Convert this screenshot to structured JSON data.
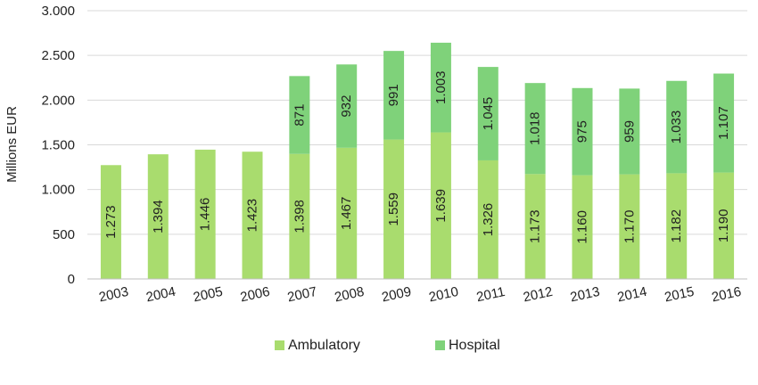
{
  "chart_data": {
    "type": "bar",
    "stacked": true,
    "title": "",
    "xlabel": "",
    "ylabel": "Millions EUR",
    "ylim": [
      0,
      3000
    ],
    "yticks": [
      0,
      500,
      1000,
      1500,
      2000,
      2500,
      3000
    ],
    "ytick_labels": [
      "0",
      "500",
      "1.000",
      "1.500",
      "2.000",
      "2.500",
      "3.000"
    ],
    "grid": true,
    "legend_position": "bottom",
    "categories": [
      "2003",
      "2004",
      "2005",
      "2006",
      "2007",
      "2008",
      "2009",
      "2010",
      "2011",
      "2012",
      "2013",
      "2014",
      "2015",
      "2016"
    ],
    "series": [
      {
        "name": "Ambulatory",
        "color": "#a9dc6e",
        "values": [
          1273,
          1394,
          1446,
          1423,
          1398,
          1467,
          1559,
          1639,
          1326,
          1173,
          1160,
          1170,
          1182,
          1190
        ],
        "labels": [
          "1.273",
          "1.394",
          "1.446",
          "1.423",
          "1.398",
          "1.467",
          "1.559",
          "1.639",
          "1.326",
          "1.173",
          "1.160",
          "1.170",
          "1.182",
          "1.190"
        ]
      },
      {
        "name": "Hospital",
        "color": "#7fd27a",
        "values": [
          null,
          null,
          null,
          null,
          871,
          932,
          991,
          1003,
          1045,
          1018,
          975,
          959,
          1033,
          1107
        ],
        "labels": [
          "",
          "",
          "",
          "",
          "871",
          "932",
          "991",
          "1.003",
          "1.045",
          "1.018",
          "975",
          "959",
          "1.033",
          "1.107"
        ]
      }
    ]
  }
}
